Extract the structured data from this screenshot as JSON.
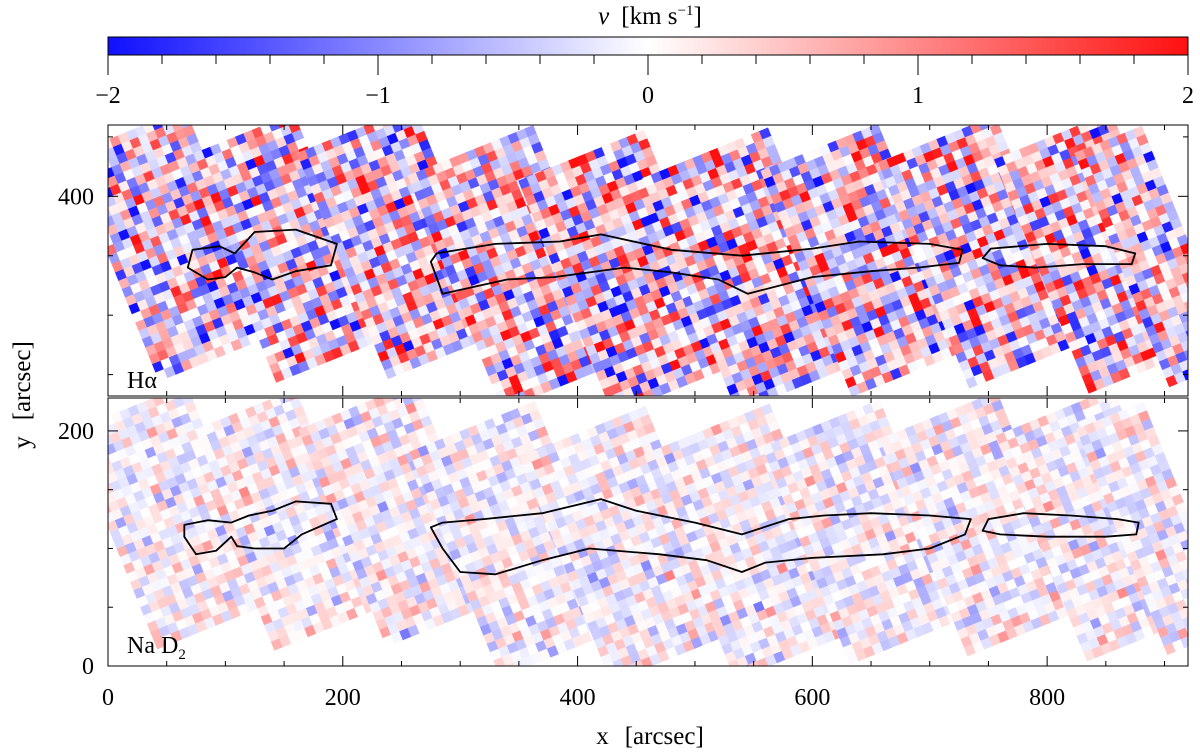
{
  "chart_data": [
    {
      "type": "colorbar",
      "title_symbol": "v",
      "title_unit": "[km s",
      "title_exponent": "−1",
      "title_close": "]",
      "range": [
        -2,
        2
      ],
      "ticks": [
        {
          "value": -2,
          "label": "−2"
        },
        {
          "value": -1,
          "label": "−1"
        },
        {
          "value": 0,
          "label": "0"
        },
        {
          "value": 1,
          "label": "1"
        },
        {
          "value": 2,
          "label": "2"
        }
      ],
      "colors": {
        "low": "#1010ff",
        "mid": "#ffffff",
        "high": "#ff1010"
      }
    },
    {
      "type": "heatmap",
      "panel_label": "Hα",
      "xlim": [
        0,
        920
      ],
      "ylim": [
        232,
        460
      ],
      "yticks": [
        {
          "value": 400,
          "label": "400"
        }
      ],
      "contrast": 1.0,
      "seed": 7,
      "tiles": [
        {
          "x": 0,
          "y": 260,
          "w": 100,
          "h": 200
        },
        {
          "x": 100,
          "y": 258,
          "w": 95,
          "h": 200
        },
        {
          "x": 195,
          "y": 262,
          "w": 100,
          "h": 200
        },
        {
          "x": 290,
          "y": 240,
          "w": 110,
          "h": 205
        },
        {
          "x": 385,
          "y": 232,
          "w": 115,
          "h": 210
        },
        {
          "x": 490,
          "y": 238,
          "w": 110,
          "h": 205
        },
        {
          "x": 590,
          "y": 248,
          "w": 105,
          "h": 200
        },
        {
          "x": 690,
          "y": 255,
          "w": 105,
          "h": 200
        },
        {
          "x": 790,
          "y": 252,
          "w": 100,
          "h": 205
        },
        {
          "x": 860,
          "y": 250,
          "w": 60,
          "h": 205
        }
      ],
      "contours": [
        [
          [
            68,
            340
          ],
          [
            72,
            355
          ],
          [
            95,
            358
          ],
          [
            108,
            352
          ],
          [
            125,
            370
          ],
          [
            160,
            372
          ],
          [
            195,
            360
          ],
          [
            190,
            342
          ],
          [
            160,
            337
          ],
          [
            140,
            330
          ],
          [
            125,
            336
          ],
          [
            110,
            340
          ],
          [
            100,
            332
          ],
          [
            85,
            330
          ]
        ],
        [
          [
            275,
            345
          ],
          [
            280,
            352
          ],
          [
            330,
            360
          ],
          [
            385,
            362
          ],
          [
            420,
            368
          ],
          [
            480,
            355
          ],
          [
            540,
            350
          ],
          [
            600,
            356
          ],
          [
            640,
            362
          ],
          [
            700,
            360
          ],
          [
            728,
            355
          ],
          [
            725,
            344
          ],
          [
            690,
            340
          ],
          [
            650,
            337
          ],
          [
            600,
            332
          ],
          [
            545,
            318
          ],
          [
            520,
            330
          ],
          [
            480,
            336
          ],
          [
            440,
            340
          ],
          [
            380,
            332
          ],
          [
            340,
            330
          ],
          [
            285,
            318
          ]
        ],
        [
          [
            745,
            348
          ],
          [
            752,
            356
          ],
          [
            800,
            360
          ],
          [
            850,
            358
          ],
          [
            875,
            352
          ],
          [
            872,
            343
          ],
          [
            830,
            343
          ],
          [
            790,
            340
          ],
          [
            760,
            342
          ]
        ]
      ],
      "contour_color": "#000000"
    },
    {
      "type": "heatmap",
      "panel_label": "Na D",
      "panel_label_sub": "2",
      "xlim": [
        0,
        920
      ],
      "ylim": [
        0,
        228
      ],
      "yticks": [
        {
          "value": 0,
          "label": "0"
        },
        {
          "value": 200,
          "label": "200"
        }
      ],
      "contrast": 0.35,
      "seed": 19,
      "tiles": [
        {
          "x": 0,
          "y": 30,
          "w": 100,
          "h": 195
        },
        {
          "x": 100,
          "y": 28,
          "w": 95,
          "h": 195
        },
        {
          "x": 195,
          "y": 32,
          "w": 100,
          "h": 195
        },
        {
          "x": 290,
          "y": 10,
          "w": 110,
          "h": 200
        },
        {
          "x": 385,
          "y": 2,
          "w": 115,
          "h": 205
        },
        {
          "x": 490,
          "y": 8,
          "w": 110,
          "h": 200
        },
        {
          "x": 590,
          "y": 18,
          "w": 105,
          "h": 195
        },
        {
          "x": 690,
          "y": 25,
          "w": 105,
          "h": 195
        },
        {
          "x": 790,
          "y": 22,
          "w": 100,
          "h": 200
        },
        {
          "x": 860,
          "y": 20,
          "w": 60,
          "h": 200
        }
      ],
      "contours": [
        [
          [
            65,
            110
          ],
          [
            75,
            95
          ],
          [
            92,
            98
          ],
          [
            105,
            110
          ],
          [
            110,
            102
          ],
          [
            125,
            100
          ],
          [
            150,
            100
          ],
          [
            165,
            112
          ],
          [
            195,
            125
          ],
          [
            190,
            138
          ],
          [
            160,
            140
          ],
          [
            140,
            132
          ],
          [
            120,
            128
          ],
          [
            105,
            122
          ],
          [
            85,
            124
          ],
          [
            65,
            120
          ]
        ],
        [
          [
            275,
            118
          ],
          [
            285,
            100
          ],
          [
            300,
            80
          ],
          [
            330,
            78
          ],
          [
            370,
            90
          ],
          [
            410,
            100
          ],
          [
            470,
            95
          ],
          [
            510,
            90
          ],
          [
            540,
            80
          ],
          [
            560,
            88
          ],
          [
            600,
            92
          ],
          [
            660,
            95
          ],
          [
            700,
            100
          ],
          [
            730,
            112
          ],
          [
            735,
            125
          ],
          [
            700,
            128
          ],
          [
            650,
            130
          ],
          [
            610,
            128
          ],
          [
            580,
            125
          ],
          [
            540,
            112
          ],
          [
            500,
            122
          ],
          [
            450,
            132
          ],
          [
            420,
            142
          ],
          [
            370,
            130
          ],
          [
            320,
            125
          ],
          [
            285,
            122
          ]
        ],
        [
          [
            745,
            115
          ],
          [
            750,
            125
          ],
          [
            780,
            130
          ],
          [
            820,
            128
          ],
          [
            860,
            125
          ],
          [
            878,
            122
          ],
          [
            876,
            112
          ],
          [
            850,
            110
          ],
          [
            800,
            110
          ],
          [
            760,
            112
          ]
        ]
      ],
      "contour_color": "#000000"
    },
    {
      "type": "axes",
      "xlabel": "x",
      "xunit": "[arcsec]",
      "ylabel": "y",
      "yunit": "[arcsec]",
      "xticks": [
        {
          "value": 0,
          "label": "0"
        },
        {
          "value": 200,
          "label": "200"
        },
        {
          "value": 400,
          "label": "400"
        },
        {
          "value": 600,
          "label": "600"
        },
        {
          "value": 800,
          "label": "800"
        }
      ]
    }
  ]
}
